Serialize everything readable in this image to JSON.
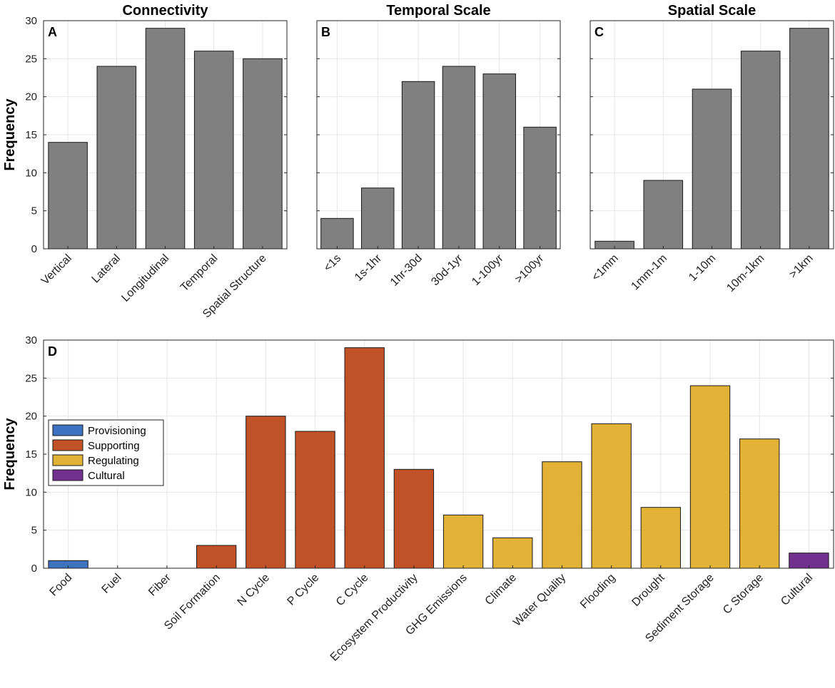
{
  "chart_data": [
    {
      "panel": "A",
      "type": "bar",
      "title": "Connectivity",
      "ylabel": "Frequency",
      "ylim": [
        0,
        30
      ],
      "yticks": [
        0,
        5,
        10,
        15,
        20,
        25,
        30
      ],
      "categories": [
        "Vertical",
        "Lateral",
        "Longitudinal",
        "Temporal",
        "Spatial Structure"
      ],
      "values": [
        14,
        24,
        29,
        26,
        25
      ],
      "color": "#808080",
      "grid": true
    },
    {
      "panel": "B",
      "type": "bar",
      "title": "Temporal Scale",
      "ylabel": "",
      "ylim": [
        0,
        30
      ],
      "yticks": [
        0,
        5,
        10,
        15,
        20,
        25,
        30
      ],
      "categories": [
        "<1s",
        "1s-1hr",
        "1hr-30d",
        "30d-1yr",
        "1-100yr",
        ">100yr"
      ],
      "values": [
        4,
        8,
        22,
        24,
        23,
        16
      ],
      "color": "#808080",
      "grid": true
    },
    {
      "panel": "C",
      "type": "bar",
      "title": "Spatial Scale",
      "ylabel": "",
      "ylim": [
        0,
        30
      ],
      "yticks": [
        0,
        5,
        10,
        15,
        20,
        25,
        30
      ],
      "categories": [
        "<1mm",
        "1mm-1m",
        "1-10m",
        "10m-1km",
        ">1km"
      ],
      "values": [
        1,
        9,
        21,
        26,
        29
      ],
      "color": "#808080",
      "grid": true
    },
    {
      "panel": "D",
      "type": "bar",
      "title": "",
      "ylabel": "Frequency",
      "ylim": [
        0,
        30
      ],
      "yticks": [
        0,
        5,
        10,
        15,
        20,
        25,
        30
      ],
      "categories": [
        "Food",
        "Fuel",
        "Fiber",
        "Soil Formation",
        "N Cycle",
        "P Cycle",
        "C Cycle",
        "Ecosystem Productivity",
        "GHG Emissions",
        "Climate",
        "Water Quality",
        "Flooding",
        "Drought",
        "Sediment Storage",
        "C Storage",
        "Cultural"
      ],
      "values": [
        1,
        0,
        0,
        3,
        20,
        18,
        29,
        13,
        7,
        4,
        14,
        19,
        8,
        24,
        17,
        2
      ],
      "groups": [
        "Provisioning",
        "Provisioning",
        "Provisioning",
        "Supporting",
        "Supporting",
        "Supporting",
        "Supporting",
        "Supporting",
        "Regulating",
        "Regulating",
        "Regulating",
        "Regulating",
        "Regulating",
        "Regulating",
        "Regulating",
        "Cultural"
      ],
      "legend": [
        {
          "label": "Provisioning",
          "color": "#3c72c0"
        },
        {
          "label": "Supporting",
          "color": "#c15227"
        },
        {
          "label": "Regulating",
          "color": "#e1b236"
        },
        {
          "label": "Cultural",
          "color": "#72308f"
        }
      ],
      "legend_position": "middle-left",
      "grid": true
    }
  ]
}
